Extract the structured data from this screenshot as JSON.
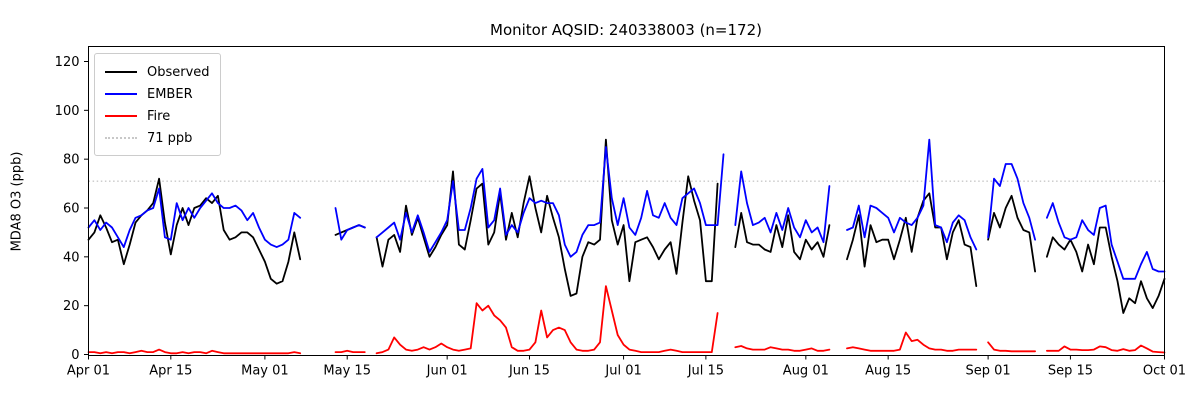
{
  "title": "Monitor AQSID: 240338003 (n=172)",
  "colors": {
    "observed": "#000000",
    "ember": "#0000ff",
    "fire": "#ff0000",
    "threshold": "#c8c8c8",
    "axis": "#000000",
    "background": "#ffffff"
  },
  "legend": {
    "items": [
      {
        "label": "Observed",
        "color": "#000000",
        "style": "solid"
      },
      {
        "label": "EMBER",
        "color": "#0000ff",
        "style": "solid"
      },
      {
        "label": "Fire",
        "color": "#ff0000",
        "style": "solid"
      },
      {
        "label": "71 ppb",
        "color": "#c8c8c8",
        "style": "dotted"
      }
    ]
  },
  "chart_data": {
    "type": "line",
    "title": "Monitor AQSID: 240338003 (n=172)",
    "n_points": 172,
    "xlabel": "",
    "ylabel": "MDA8 O3 (ppb)",
    "ylim": [
      0,
      126
    ],
    "y_ticks": [
      0,
      20,
      40,
      60,
      80,
      100,
      120
    ],
    "x_domain_days": [
      0,
      183
    ],
    "x_start_date": "Apr 01",
    "x_end_date": "Oct 01",
    "x_ticks": [
      {
        "day": 0,
        "label": "Apr 01"
      },
      {
        "day": 14,
        "label": "Apr 15"
      },
      {
        "day": 30,
        "label": "May 01"
      },
      {
        "day": 44,
        "label": "May 15"
      },
      {
        "day": 61,
        "label": "Jun 01"
      },
      {
        "day": 75,
        "label": "Jun 15"
      },
      {
        "day": 91,
        "label": "Jul 01"
      },
      {
        "day": 105,
        "label": "Jul 15"
      },
      {
        "day": 122,
        "label": "Aug 01"
      },
      {
        "day": 136,
        "label": "Aug 15"
      },
      {
        "day": 153,
        "label": "Sep 01"
      },
      {
        "day": 167,
        "label": "Sep 15"
      },
      {
        "day": 183,
        "label": "Oct 01"
      }
    ],
    "threshold_line": {
      "value": 71,
      "label": "71 ppb",
      "style": "dotted",
      "color": "#c8c8c8"
    },
    "grid": false,
    "legend_position": "upper left",
    "series": [
      {
        "name": "Observed",
        "color": "#000000",
        "values": [
          47,
          50,
          57,
          52,
          46,
          47,
          37,
          45,
          54,
          57,
          59,
          62,
          72,
          54,
          41,
          53,
          60,
          53,
          60,
          61,
          64,
          62,
          65,
          51,
          47,
          48,
          50,
          50,
          48,
          43,
          38,
          31,
          29,
          30,
          38,
          50,
          39,
          null,
          null,
          null,
          null,
          null,
          49,
          50,
          51,
          52,
          53,
          52,
          null,
          48,
          36,
          47,
          49,
          42,
          61,
          49,
          56,
          48,
          40,
          44,
          49,
          53,
          75,
          45,
          43,
          55,
          68,
          70,
          45,
          50,
          66,
          47,
          58,
          48,
          62,
          73,
          60,
          50,
          65,
          56,
          48,
          35,
          24,
          25,
          40,
          46,
          45,
          47,
          88,
          55,
          45,
          53,
          30,
          46,
          47,
          48,
          44,
          39,
          43,
          46,
          33,
          54,
          73,
          63,
          55,
          30,
          30,
          70,
          null,
          null,
          44,
          58,
          46,
          45,
          45,
          43,
          42,
          53,
          44,
          57,
          42,
          39,
          47,
          43,
          46,
          40,
          53,
          null,
          null,
          39,
          47,
          57,
          36,
          53,
          46,
          47,
          47,
          39,
          47,
          56,
          42,
          56,
          63,
          66,
          52,
          52,
          39,
          50,
          55,
          45,
          44,
          28,
          null,
          47,
          58,
          52,
          60,
          65,
          56,
          51,
          50,
          34,
          null,
          40,
          48,
          45,
          43,
          47,
          42,
          34,
          45,
          37,
          52,
          52,
          40,
          30,
          17,
          23,
          21,
          30,
          23,
          19,
          24,
          31
        ]
      },
      {
        "name": "EMBER",
        "color": "#0000ff",
        "values": [
          52,
          55,
          51,
          54,
          52,
          48,
          44,
          51,
          56,
          57,
          59,
          60,
          68,
          48,
          47,
          62,
          55,
          60,
          56,
          60,
          63,
          66,
          62,
          60,
          60,
          61,
          59,
          55,
          58,
          52,
          47,
          45,
          44,
          45,
          47,
          58,
          56,
          null,
          null,
          null,
          null,
          null,
          60,
          47,
          51,
          52,
          53,
          52,
          null,
          48,
          50,
          52,
          54,
          47,
          58,
          50,
          57,
          50,
          42,
          46,
          50,
          55,
          71,
          51,
          51,
          60,
          72,
          76,
          52,
          55,
          68,
          49,
          53,
          50,
          58,
          64,
          62,
          63,
          62,
          62,
          57,
          45,
          40,
          42,
          49,
          53,
          53,
          54,
          85,
          64,
          53,
          64,
          52,
          49,
          56,
          67,
          57,
          56,
          62,
          56,
          53,
          64,
          66,
          68,
          62,
          53,
          53,
          53,
          82,
          null,
          53,
          75,
          62,
          53,
          54,
          56,
          50,
          58,
          51,
          60,
          52,
          48,
          55,
          50,
          52,
          46,
          69,
          null,
          null,
          51,
          52,
          61,
          48,
          61,
          60,
          58,
          56,
          50,
          56,
          54,
          53,
          56,
          61,
          88,
          53,
          52,
          46,
          54,
          57,
          55,
          48,
          43,
          null,
          48,
          72,
          69,
          78,
          78,
          72,
          62,
          56,
          47,
          null,
          56,
          62,
          54,
          48,
          47,
          48,
          55,
          51,
          49,
          60,
          61,
          45,
          38,
          31,
          31,
          31,
          37,
          42,
          35,
          34,
          34
        ]
      },
      {
        "name": "Fire",
        "color": "#ff0000",
        "values": [
          1,
          1,
          0.5,
          1,
          0.5,
          1,
          1,
          0.5,
          1,
          1.5,
          1,
          1,
          2,
          1,
          0.5,
          0.5,
          1,
          0.5,
          1,
          1,
          0.5,
          1.5,
          1,
          0.5,
          0.5,
          0.5,
          0.5,
          0.5,
          0.5,
          0.5,
          0.5,
          0.5,
          0.5,
          0.5,
          0.5,
          1,
          0.5,
          null,
          null,
          null,
          null,
          null,
          1,
          1,
          1.5,
          1,
          1,
          1,
          null,
          0.5,
          1,
          2,
          7,
          4,
          2,
          1.5,
          2,
          3,
          2,
          3,
          4.5,
          3,
          2,
          1.5,
          2,
          2.5,
          21,
          18,
          20,
          16,
          14,
          11,
          3,
          1.5,
          1.5,
          2,
          5,
          18,
          7,
          10,
          11,
          10,
          5,
          2,
          1.5,
          1.5,
          2,
          5,
          28,
          18,
          8,
          4,
          2,
          1.5,
          1,
          1,
          1,
          1,
          1.5,
          2,
          1.5,
          1,
          1,
          1,
          1,
          1,
          1,
          17,
          null,
          null,
          3,
          3.5,
          2.5,
          2,
          2,
          2,
          3,
          2.5,
          2,
          2,
          1.5,
          1.5,
          2,
          2.5,
          1.5,
          1.5,
          2,
          null,
          null,
          2.5,
          3,
          2.5,
          2,
          1.5,
          1.5,
          1.5,
          1.5,
          1.5,
          2,
          9,
          5.5,
          6,
          4,
          2.5,
          2,
          2,
          1.5,
          1.5,
          2,
          2,
          2,
          2,
          null,
          5,
          2,
          1.5,
          1.5,
          1.3,
          1.3,
          1.3,
          1.3,
          1.3,
          null,
          1.5,
          1.5,
          1.5,
          3.3,
          2,
          2,
          1.8,
          1.8,
          2,
          3.3,
          3,
          1.8,
          1.5,
          2.2,
          1.5,
          1.8,
          3.7,
          2.5,
          1.2,
          1,
          0.8
        ]
      }
    ]
  }
}
